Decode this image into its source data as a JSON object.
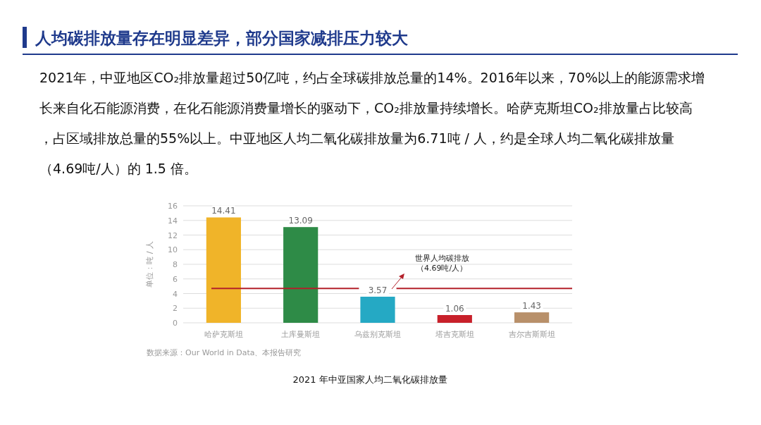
{
  "chart_data": {
    "type": "bar",
    "title": "人均碳排放量存在明显差异，部分国家减排压力较大",
    "subtitle": "2021年，中亚地区CO₂排放量超过50亿吨，约占全球碳排放总量的14%。2016年以来，70%以上的能源需求增长来自化石能源消费，在化石能源消费量增长的驱动下，CO₂排放量持续增长。哈萨克斯坦CO₂排放量占比较高，占区域排放总量的55%以上。中亚地区人均二氧化碳排放量为6.71吨 / 人，约是全球人均二氧化碳排放量（4.69吨/人）的 1.5 倍。",
    "categories": [
      "哈萨克斯坦",
      "土库曼斯坦",
      "乌兹别克斯坦",
      "塔吉克斯坦",
      "吉尔吉斯斯坦"
    ],
    "values": [
      14.41,
      13.09,
      3.57,
      1.06,
      1.43
    ],
    "colors": [
      "#f0b429",
      "#2e8b47",
      "#25a9c4",
      "#c8202a",
      "#b8906a"
    ],
    "data_labels": true,
    "ylabel": "单位：吨 / 人",
    "ylim": [
      0,
      16
    ],
    "yticks": [
      0,
      2,
      4,
      6,
      8,
      10,
      12,
      14,
      16
    ],
    "grid": "y",
    "ref_lines": [
      {
        "axis": "y",
        "value": 4.69,
        "label": "世界人均碳排放（4.69吨/人）",
        "color": "#b3202a"
      }
    ],
    "annotations": [
      "数据来源：Our World in Data、本报告研究",
      "2021 年中亚国家人均二氧化碳排放量"
    ]
  }
}
